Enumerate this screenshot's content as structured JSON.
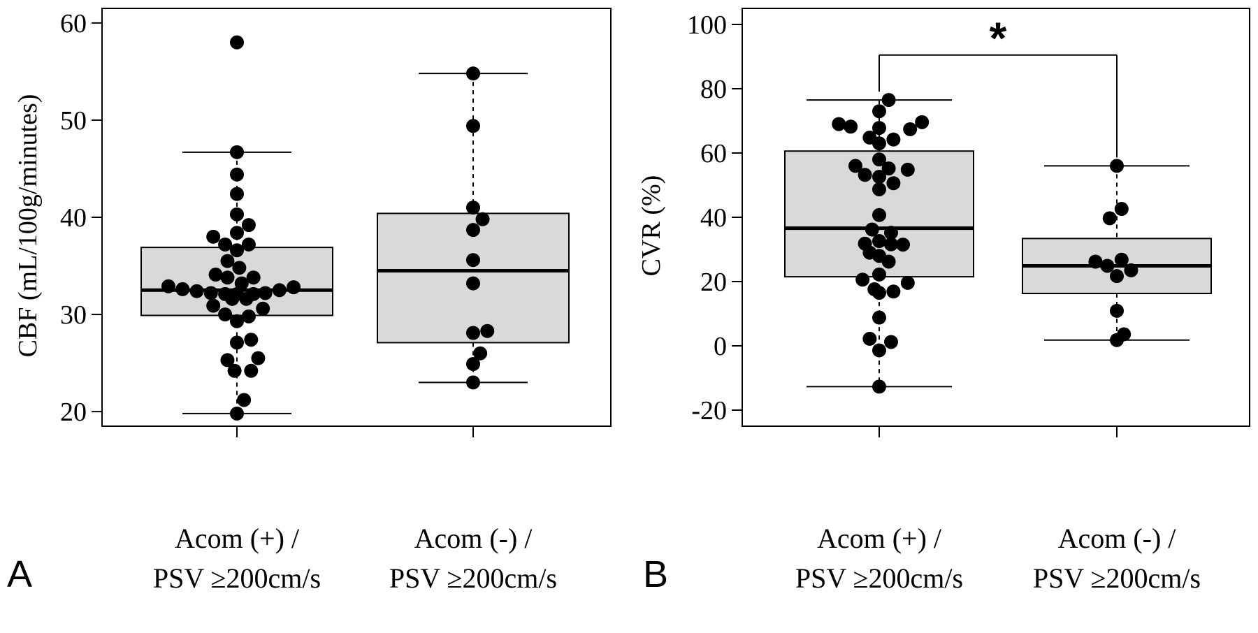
{
  "chart_data": [
    {
      "type": "box",
      "panel_letter": "A",
      "ylabel": "CBF (mL/100g/minutes)",
      "xlabel": "",
      "ylim": [
        18.5,
        61.5
      ],
      "yticks": [
        20,
        30,
        40,
        50,
        60
      ],
      "ytick_labels": [
        "20",
        "30",
        "40",
        "50",
        "60"
      ],
      "grid": false,
      "categories": [
        [
          "Acom (+) /",
          "PSV ≥200cm/s"
        ],
        [
          "Acom (-) /",
          "PSV ≥200cm/s"
        ]
      ],
      "boxes": [
        {
          "whisker_low": 19.8,
          "q1": 29.9,
          "median": 32.5,
          "q3": 36.9,
          "whisker_high": 46.7
        },
        {
          "whisker_low": 23.0,
          "q1": 27.1,
          "median": 34.5,
          "q3": 40.4,
          "whisker_high": 54.8
        }
      ],
      "points": [
        [
          {
            "x": 0.0,
            "y": 58.0
          },
          {
            "x": 0.0,
            "y": 46.7
          },
          {
            "x": 0.0,
            "y": 44.4
          },
          {
            "x": 0.0,
            "y": 42.4
          },
          {
            "x": 0.0,
            "y": 40.3
          },
          {
            "x": 0.0,
            "y": 38.4
          },
          {
            "x": -0.1,
            "y": 38.0
          },
          {
            "x": 0.05,
            "y": 39.2
          },
          {
            "x": -0.05,
            "y": 37.2
          },
          {
            "x": 0.05,
            "y": 37.2
          },
          {
            "x": 0.0,
            "y": 36.6
          },
          {
            "x": -0.04,
            "y": 35.5
          },
          {
            "x": 0.01,
            "y": 34.8
          },
          {
            "x": -0.09,
            "y": 34.1
          },
          {
            "x": -0.04,
            "y": 33.8
          },
          {
            "x": 0.07,
            "y": 33.8
          },
          {
            "x": 0.02,
            "y": 33.2
          },
          {
            "x": -0.29,
            "y": 32.9
          },
          {
            "x": -0.23,
            "y": 32.6
          },
          {
            "x": -0.17,
            "y": 32.4
          },
          {
            "x": 0.18,
            "y": 32.5
          },
          {
            "x": 0.24,
            "y": 32.8
          },
          {
            "x": -0.11,
            "y": 32.2
          },
          {
            "x": -0.05,
            "y": 32.1
          },
          {
            "x": 0.0,
            "y": 32.1
          },
          {
            "x": 0.07,
            "y": 32.1
          },
          {
            "x": 0.12,
            "y": 32.2
          },
          {
            "x": -0.02,
            "y": 31.6
          },
          {
            "x": 0.04,
            "y": 31.6
          },
          {
            "x": -0.1,
            "y": 30.9
          },
          {
            "x": 0.11,
            "y": 30.6
          },
          {
            "x": -0.05,
            "y": 30.0
          },
          {
            "x": 0.05,
            "y": 29.8
          },
          {
            "x": 0.0,
            "y": 29.3
          },
          {
            "x": 0.0,
            "y": 27.1
          },
          {
            "x": 0.06,
            "y": 27.4
          },
          {
            "x": -0.04,
            "y": 25.3
          },
          {
            "x": 0.09,
            "y": 25.5
          },
          {
            "x": -0.01,
            "y": 24.2
          },
          {
            "x": 0.06,
            "y": 24.2
          },
          {
            "x": 0.03,
            "y": 21.2
          },
          {
            "x": 0.0,
            "y": 19.8
          }
        ],
        [
          {
            "x": 0.0,
            "y": 54.8
          },
          {
            "x": 0.0,
            "y": 49.4
          },
          {
            "x": 0.0,
            "y": 41.0
          },
          {
            "x": 0.04,
            "y": 39.8
          },
          {
            "x": 0.0,
            "y": 38.7
          },
          {
            "x": 0.0,
            "y": 35.6
          },
          {
            "x": 0.0,
            "y": 33.2
          },
          {
            "x": 0.0,
            "y": 28.1
          },
          {
            "x": 0.06,
            "y": 28.3
          },
          {
            "x": 0.03,
            "y": 26.0
          },
          {
            "x": 0.0,
            "y": 24.9
          },
          {
            "x": 0.0,
            "y": 23.0
          }
        ]
      ]
    },
    {
      "type": "box",
      "panel_letter": "B",
      "ylabel": "CVR (%)",
      "xlabel": "",
      "ylim": [
        -25,
        105
      ],
      "yticks": [
        -20,
        0,
        20,
        40,
        60,
        80,
        100
      ],
      "ytick_labels": [
        "-20",
        "0",
        "20",
        "40",
        "60",
        "80",
        "100"
      ],
      "grid": false,
      "categories": [
        [
          "Acom (+) /",
          "PSV ≥200cm/s"
        ],
        [
          "Acom (-) /",
          "PSV ≥200cm/s"
        ]
      ],
      "boxes": [
        {
          "whisker_low": -12.7,
          "q1": 21.5,
          "median": 36.6,
          "q3": 60.6,
          "whisker_high": 76.5
        },
        {
          "whisker_low": 1.8,
          "q1": 16.3,
          "median": 24.9,
          "q3": 33.4,
          "whisker_high": 56.0
        }
      ],
      "significance": {
        "label": "*",
        "between": [
          0,
          1
        ],
        "y": 90.5
      },
      "points": [
        [
          {
            "x": 0.04,
            "y": 76.5
          },
          {
            "x": 0.0,
            "y": 73.0
          },
          {
            "x": -0.17,
            "y": 69.0
          },
          {
            "x": -0.12,
            "y": 68.2
          },
          {
            "x": 0.0,
            "y": 67.8
          },
          {
            "x": 0.13,
            "y": 67.4
          },
          {
            "x": 0.18,
            "y": 69.6
          },
          {
            "x": -0.04,
            "y": 64.8
          },
          {
            "x": 0.06,
            "y": 64.2
          },
          {
            "x": 0.0,
            "y": 63.0
          },
          {
            "x": 0.0,
            "y": 58.0
          },
          {
            "x": -0.1,
            "y": 56.0
          },
          {
            "x": 0.04,
            "y": 55.2
          },
          {
            "x": 0.12,
            "y": 54.8
          },
          {
            "x": -0.06,
            "y": 53.2
          },
          {
            "x": 0.0,
            "y": 52.6
          },
          {
            "x": 0.06,
            "y": 50.6
          },
          {
            "x": 0.0,
            "y": 48.7
          },
          {
            "x": 0.0,
            "y": 40.7
          },
          {
            "x": -0.03,
            "y": 36.2
          },
          {
            "x": 0.05,
            "y": 35.2
          },
          {
            "x": 0.0,
            "y": 32.6
          },
          {
            "x": -0.06,
            "y": 31.8
          },
          {
            "x": 0.05,
            "y": 31.6
          },
          {
            "x": 0.1,
            "y": 31.5
          },
          {
            "x": -0.04,
            "y": 29.0
          },
          {
            "x": 0.0,
            "y": 28.0
          },
          {
            "x": 0.04,
            "y": 26.2
          },
          {
            "x": 0.0,
            "y": 22.2
          },
          {
            "x": -0.07,
            "y": 20.6
          },
          {
            "x": 0.12,
            "y": 19.6
          },
          {
            "x": -0.02,
            "y": 17.6
          },
          {
            "x": 0.06,
            "y": 16.9
          },
          {
            "x": 0.0,
            "y": 16.5
          },
          {
            "x": 0.0,
            "y": 8.8
          },
          {
            "x": -0.04,
            "y": 2.2
          },
          {
            "x": 0.05,
            "y": 1.2
          },
          {
            "x": 0.0,
            "y": -1.4
          },
          {
            "x": 0.0,
            "y": -12.7
          }
        ],
        [
          {
            "x": 0.0,
            "y": 56.0
          },
          {
            "x": 0.02,
            "y": 42.6
          },
          {
            "x": -0.03,
            "y": 39.7
          },
          {
            "x": -0.09,
            "y": 26.2
          },
          {
            "x": -0.04,
            "y": 24.9
          },
          {
            "x": 0.02,
            "y": 26.8
          },
          {
            "x": 0.06,
            "y": 23.5
          },
          {
            "x": 0.0,
            "y": 21.7
          },
          {
            "x": 0.0,
            "y": 10.9
          },
          {
            "x": 0.03,
            "y": 3.6
          },
          {
            "x": 0.0,
            "y": 1.8
          }
        ]
      ]
    }
  ]
}
